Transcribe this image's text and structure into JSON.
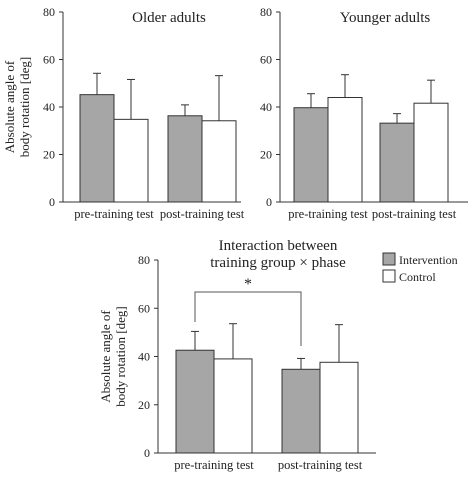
{
  "chart_data": [
    {
      "type": "bar",
      "title": "Older adults",
      "ylabel_lines": [
        "Absolute angle of",
        "body rotation [deg]"
      ],
      "ylim": [
        0,
        80
      ],
      "yticks": [
        "0",
        "20",
        "40",
        "60",
        "80"
      ],
      "categories": [
        "pre-training test",
        "post-training test"
      ],
      "series": [
        {
          "name": "Intervention",
          "values": [
            45.2,
            36.3
          ],
          "errors": [
            9.0,
            4.6
          ]
        },
        {
          "name": "Control",
          "values": [
            34.8,
            34.2
          ],
          "errors": [
            16.8,
            19.0
          ]
        }
      ]
    },
    {
      "type": "bar",
      "title": "Younger adults",
      "ylabel_lines": [],
      "ylim": [
        0,
        80
      ],
      "yticks": [
        "0",
        "20",
        "40",
        "60",
        "80"
      ],
      "categories": [
        "pre-training test",
        "post-training test"
      ],
      "series": [
        {
          "name": "Intervention",
          "values": [
            39.7,
            33.2
          ],
          "errors": [
            5.9,
            4.0
          ]
        },
        {
          "name": "Control",
          "values": [
            44.0,
            41.6
          ],
          "errors": [
            9.6,
            9.7
          ]
        }
      ]
    },
    {
      "type": "bar",
      "title_lines": [
        "Interaction between",
        "training group × phase"
      ],
      "ylabel_lines": [
        "Absolute angle of",
        "body rotation [deg]"
      ],
      "ylim": [
        0,
        80
      ],
      "yticks": [
        "0",
        "20",
        "40",
        "60",
        "80"
      ],
      "categories": [
        "pre-training test",
        "post-training test"
      ],
      "series": [
        {
          "name": "Intervention",
          "values": [
            42.6,
            34.7
          ],
          "errors": [
            7.8,
            4.5
          ]
        },
        {
          "name": "Control",
          "values": [
            39.0,
            37.6
          ],
          "errors": [
            14.6,
            15.6
          ]
        }
      ],
      "significance": "*"
    }
  ],
  "legend": {
    "items": [
      {
        "label": "Intervention",
        "color": "#a6a6a6"
      },
      {
        "label": "Control",
        "color": "#ffffff"
      }
    ],
    "position": "top-right"
  }
}
